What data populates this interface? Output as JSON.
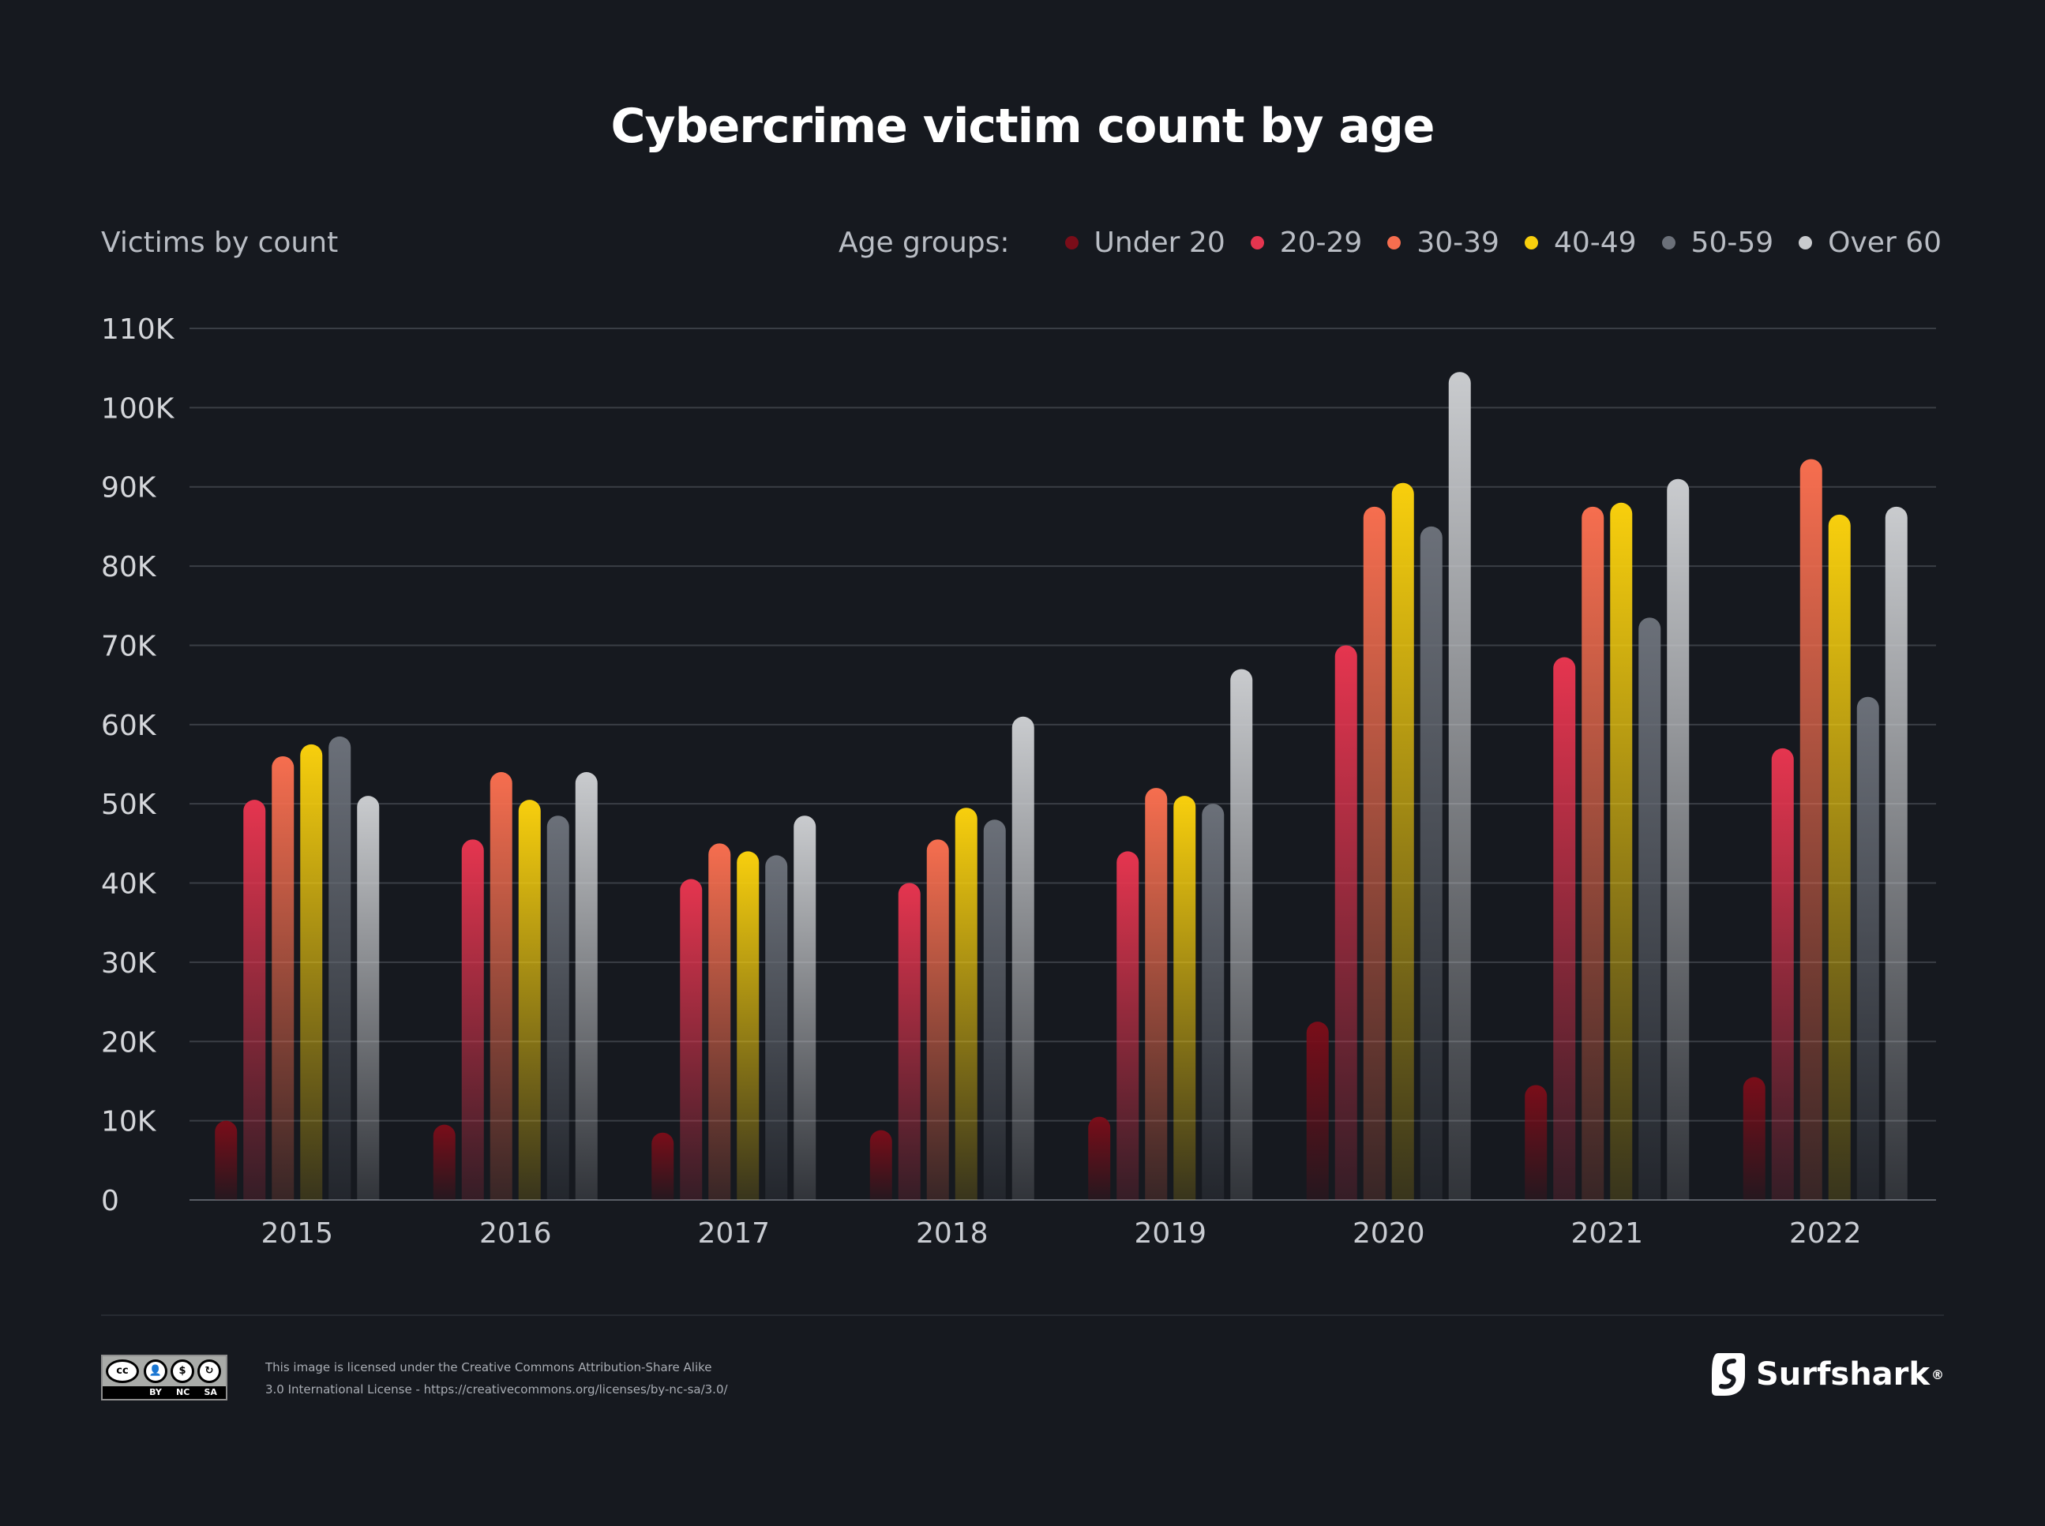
{
  "title": "Cybercrime victim count by age",
  "y_axis_title": "Victims by count",
  "legend": {
    "lead": "Age groups:",
    "items": [
      {
        "label": "Under 20",
        "color": "#7a0d19"
      },
      {
        "label": "20-29",
        "color": "#e5354f"
      },
      {
        "label": "30-39",
        "color": "#f66e4f"
      },
      {
        "label": "40-49",
        "color": "#f8cf0d"
      },
      {
        "label": "50-59",
        "color": "#6b7079"
      },
      {
        "label": "Over 60",
        "color": "#c9cbce"
      }
    ]
  },
  "chart_data": {
    "type": "bar",
    "categories": [
      "2015",
      "2016",
      "2017",
      "2018",
      "2019",
      "2020",
      "2021",
      "2022"
    ],
    "series": [
      {
        "name": "Under 20",
        "color": "#7a0d19",
        "values": [
          10000,
          9500,
          8500,
          8800,
          10500,
          22500,
          14500,
          15500
        ]
      },
      {
        "name": "20-29",
        "color": "#e5354f",
        "values": [
          50500,
          45500,
          40500,
          40000,
          44000,
          70000,
          68500,
          57000
        ]
      },
      {
        "name": "30-39",
        "color": "#f66e4f",
        "values": [
          56000,
          54000,
          45000,
          45500,
          52000,
          87500,
          87500,
          93500
        ]
      },
      {
        "name": "40-49",
        "color": "#f8cf0d",
        "values": [
          57500,
          50500,
          44000,
          49500,
          51000,
          90500,
          88000,
          86500
        ]
      },
      {
        "name": "50-59",
        "color": "#6b7079",
        "values": [
          58500,
          48500,
          43500,
          48000,
          50000,
          85000,
          73500,
          63500
        ]
      },
      {
        "name": "Over 60",
        "color": "#c9cbce",
        "values": [
          51000,
          54000,
          48500,
          61000,
          67000,
          104500,
          91000,
          87500
        ]
      }
    ],
    "ylim": [
      0,
      110000
    ],
    "yticks": [
      0,
      10000,
      20000,
      30000,
      40000,
      50000,
      60000,
      70000,
      80000,
      90000,
      100000,
      110000
    ],
    "ytick_labels": [
      "0",
      "10K",
      "20K",
      "30K",
      "40K",
      "50K",
      "60K",
      "70K",
      "80K",
      "90K",
      "100K",
      "110K"
    ],
    "grid": true,
    "legend_position": "top-right"
  },
  "footer": {
    "cc_labels": [
      "BY",
      "NC",
      "SA"
    ],
    "cc_mark": "cc",
    "license_line1": "This image is licensed under the Creative Commons Attribution-Share Alike",
    "license_line2": "3.0 International License - https://creativecommons.org/licenses/by-nc-sa/3.0/",
    "brand": "Surfshark",
    "brand_mark": "®"
  }
}
